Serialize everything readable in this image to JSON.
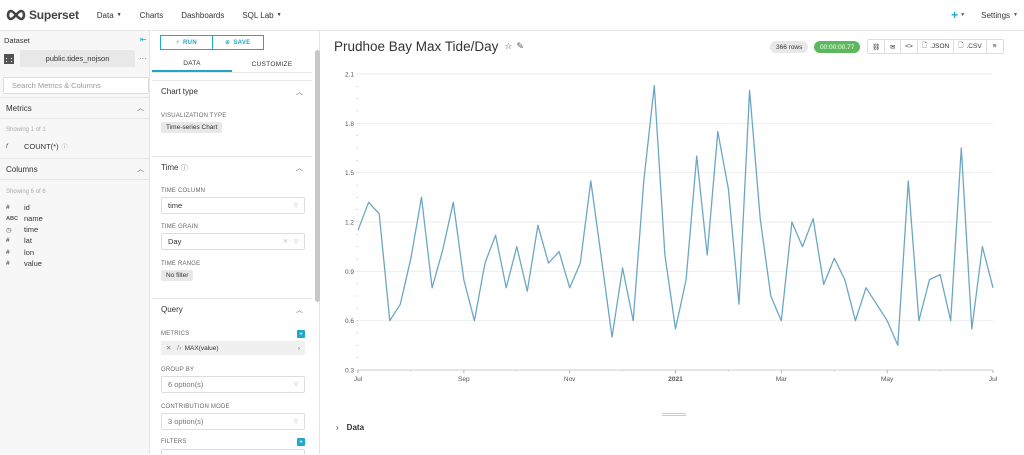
{
  "nav": {
    "brand": "Superset",
    "items": [
      {
        "label": "Data",
        "dropdown": true
      },
      {
        "label": "Charts",
        "dropdown": false
      },
      {
        "label": "Dashboards",
        "dropdown": false
      },
      {
        "label": "SQL Lab",
        "dropdown": true
      }
    ],
    "plus_label": "+",
    "settings_label": "Settings"
  },
  "left": {
    "dataset_title": "Dataset",
    "dataset_name": "public.tides_nojson",
    "search_placeholder": "Search Metrics & Columns",
    "metrics_title": "Metrics",
    "metrics_showing": "Showing 1 of 1",
    "metrics": [
      {
        "type": "f",
        "name": "COUNT(*)"
      }
    ],
    "columns_title": "Columns",
    "columns_showing": "Showing 6 of 6",
    "columns": [
      {
        "type": "#",
        "name": "id"
      },
      {
        "type": "ABC",
        "name": "name"
      },
      {
        "type": "◷",
        "name": "time"
      },
      {
        "type": "#",
        "name": "lat"
      },
      {
        "type": "#",
        "name": "lon"
      },
      {
        "type": "#",
        "name": "value"
      }
    ]
  },
  "controls": {
    "run_label": "RUN",
    "save_label": "SAVE",
    "tab_data": "DATA",
    "tab_customize": "CUSTOMIZE",
    "chart_type_title": "Chart type",
    "viz_type_label": "VISUALIZATION TYPE",
    "viz_type_value": "Time-series Chart",
    "time_title": "Time",
    "time_column_label": "TIME COLUMN",
    "time_column_value": "time",
    "time_grain_label": "TIME GRAIN",
    "time_grain_value": "Day",
    "time_range_label": "TIME RANGE",
    "time_range_value": "No filter",
    "query_title": "Query",
    "metrics_label": "METRICS",
    "metric_value": "MAX(value)",
    "group_by_label": "GROUP BY",
    "group_by_value": "6 option(s)",
    "contribution_label": "CONTRIBUTION MODE",
    "contribution_value": "3 option(s)",
    "filters_label": "FILTERS"
  },
  "main": {
    "title": "Prudhoe Bay Max Tide/Day",
    "rows_badge": "366 rows",
    "time_badge": "00:00:00.77",
    "actions": [
      "⛓",
      "✉",
      "<>",
      ".JSON",
      ".CSV",
      "≡"
    ],
    "data_toggle": "Data"
  },
  "colors": {
    "accent": "#20a7c9",
    "line": "#6ba7c5",
    "success": "#5cb85c"
  },
  "chart_data": {
    "type": "line",
    "title": "",
    "xlabel": "",
    "ylabel": "",
    "ylim": [
      0.3,
      2.1
    ],
    "yticks": [
      0.3,
      0.6,
      0.9,
      1.2,
      1.5,
      1.8,
      2.1
    ],
    "x_ticks": [
      "Jul",
      "Sep",
      "Nov",
      "2021",
      "Mar",
      "May",
      "Jul"
    ],
    "x_tick_positions": [
      0,
      2,
      4,
      6,
      8,
      10,
      12
    ],
    "x_months": [
      0,
      0.2,
      0.4,
      0.6,
      0.8,
      1,
      1.2,
      1.4,
      1.6,
      1.8,
      2,
      2.2,
      2.4,
      2.6,
      2.8,
      3,
      3.2,
      3.4,
      3.6,
      3.8,
      4,
      4.2,
      4.4,
      4.6,
      4.8,
      5,
      5.2,
      5.4,
      5.6,
      5.8,
      6,
      6.2,
      6.4,
      6.6,
      6.8,
      7,
      7.2,
      7.4,
      7.6,
      7.8,
      8,
      8.2,
      8.4,
      8.6,
      8.8,
      9,
      9.2,
      9.4,
      9.6,
      9.8,
      10,
      10.2,
      10.4,
      10.6,
      10.8,
      11,
      11.2,
      11.4,
      11.6,
      11.8,
      12
    ],
    "series": [
      {
        "values": [
          1.15,
          1.32,
          1.25,
          0.6,
          0.7,
          0.98,
          1.35,
          0.8,
          1.03,
          1.32,
          0.85,
          0.6,
          0.95,
          1.12,
          0.8,
          1.05,
          0.78,
          1.18,
          0.95,
          1.02,
          0.8,
          0.95,
          1.45,
          0.98,
          0.5,
          0.92,
          0.6,
          1.45,
          2.03,
          1.0,
          0.55,
          0.85,
          1.6,
          1.0,
          1.75,
          1.4,
          0.7,
          2.0,
          1.22,
          0.75,
          0.6,
          1.2,
          1.05,
          1.22,
          0.82,
          0.98,
          0.85,
          0.6,
          0.8,
          0.7,
          0.6,
          0.45,
          1.45,
          0.6,
          0.85,
          0.88,
          0.6,
          1.65,
          0.55,
          1.05,
          0.8
        ]
      }
    ]
  }
}
